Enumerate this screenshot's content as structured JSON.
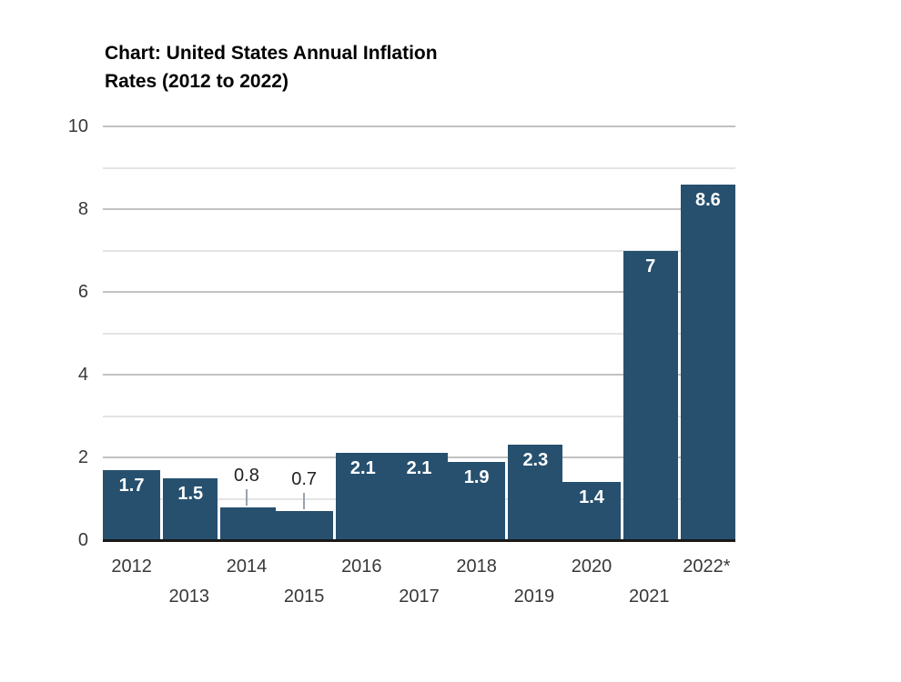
{
  "header": {
    "title_line1": "Chart: United States Annual Inflation",
    "title_line2": "Rates (2012 to 2022)"
  },
  "chart_data": {
    "type": "bar",
    "title": "Chart: United States Annual Inflation Rates (2012 to 2022)",
    "categories": [
      "2012",
      "2013",
      "2014",
      "2015",
      "2016",
      "2017",
      "2018",
      "2019",
      "2020",
      "2021",
      "2022*"
    ],
    "values": [
      1.7,
      1.5,
      0.8,
      0.7,
      2.1,
      2.1,
      1.9,
      2.3,
      1.4,
      7,
      8.6
    ],
    "bar_labels": [
      "1.7",
      "1.5",
      "0.8",
      "0.7",
      "2.1",
      "2.1",
      "1.9",
      "2.3",
      "1.4",
      "7",
      "8.6"
    ],
    "label_placement": [
      "inside",
      "inside",
      "outside",
      "outside",
      "inside",
      "inside",
      "inside",
      "inside",
      "inside",
      "inside",
      "inside"
    ],
    "gap_before": [
      false,
      true,
      true,
      false,
      true,
      false,
      false,
      true,
      false,
      true,
      true
    ],
    "xlabel": "",
    "ylabel": "",
    "ylim": [
      0,
      10
    ],
    "ytick_values": [
      0,
      2,
      4,
      6,
      8,
      10
    ],
    "ytick_labels": [
      "0",
      "2",
      "4",
      "6",
      "8",
      "10"
    ],
    "minor_grid_values": [
      1,
      3,
      5,
      7,
      9
    ],
    "grid": "horizontal",
    "legend": "none",
    "x_label_rows": "staggered"
  },
  "colors": {
    "background": "#ffffff",
    "bar": "#27506f",
    "inside_label": "#ffffff",
    "outside_label": "#1f1f1f",
    "axis_text": "#383838",
    "title_text": "#000000",
    "major_grid": "#c2c2c2",
    "minor_grid": "#e4e4e4",
    "baseline": "#191919",
    "leader_line": "#9aa2ab",
    "gap": "#ffffff"
  }
}
